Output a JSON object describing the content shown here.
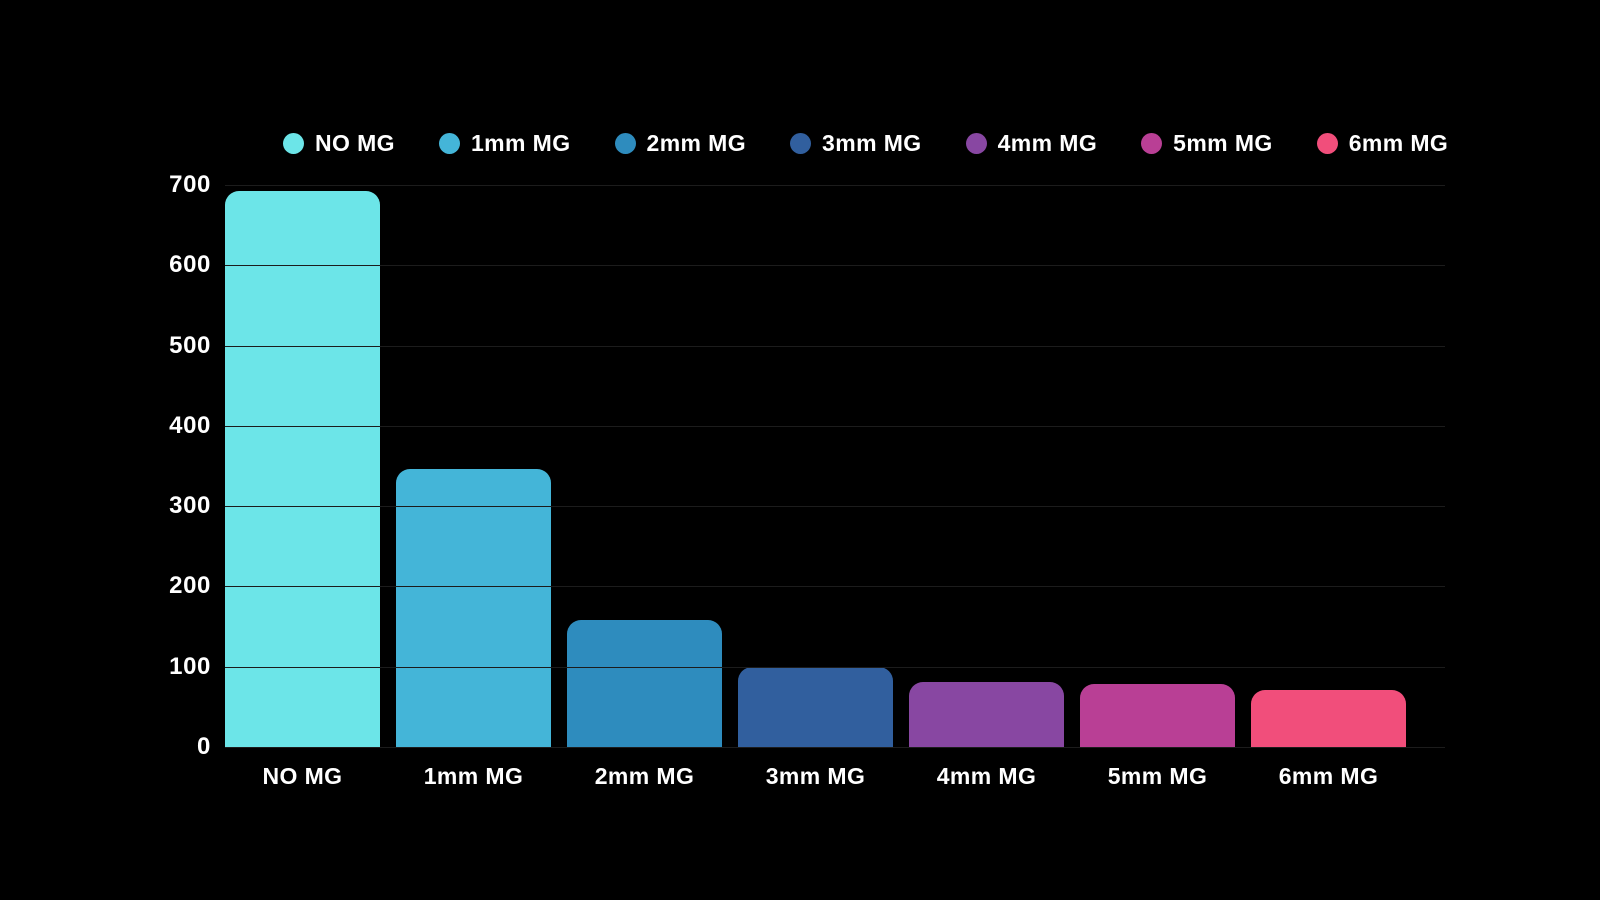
{
  "chart_data": {
    "type": "bar",
    "title": "",
    "xlabel": "",
    "ylabel": "",
    "categories": [
      "NO MG",
      "1mm MG",
      "2mm MG",
      "3mm MG",
      "4mm MG",
      "5mm MG",
      "6mm MG"
    ],
    "values": [
      692,
      346,
      158,
      100,
      81,
      79,
      71
    ],
    "colors": [
      "#6ce5e8",
      "#44b5d8",
      "#2e8cbe",
      "#315f9e",
      "#8847a2",
      "#b93f95",
      "#f14e7b"
    ],
    "y_ticks": [
      700,
      600,
      500,
      400,
      300,
      200,
      100,
      0
    ],
    "ylim": [
      0,
      700
    ],
    "grid": "horizontal",
    "legend_position": "top",
    "background_color": "#000000",
    "text_color": "#ffffff",
    "grid_color": "#1c1c1c"
  }
}
